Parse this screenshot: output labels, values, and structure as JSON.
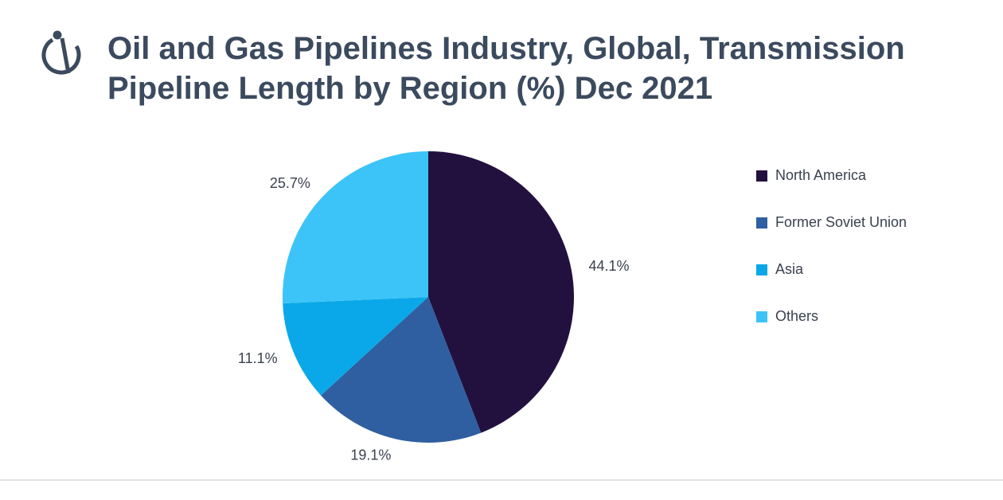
{
  "chart_data": {
    "type": "pie",
    "title": "Oil and Gas Pipelines Industry, Global, Transmission Pipeline Length by Region (%) Dec 2021",
    "categories": [
      "North America",
      "Former Soviet Union",
      "Asia",
      "Others"
    ],
    "values": [
      44.1,
      19.1,
      11.1,
      25.7
    ],
    "value_labels": [
      "44.1%",
      "19.1%",
      "11.1%",
      "25.7%"
    ],
    "colors": [
      "#22103f",
      "#2f5fa0",
      "#0aa8e8",
      "#3cc4f8"
    ],
    "legend": "right"
  }
}
